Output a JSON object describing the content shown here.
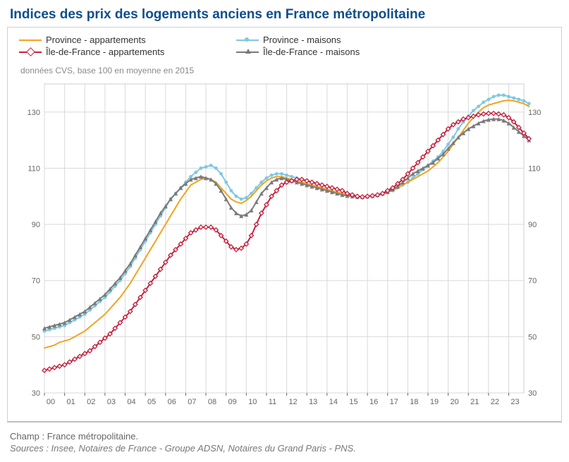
{
  "title": "Indices des prix des logements anciens en France métropolitaine",
  "note": "données CVS, base 100 en moyenne en 2015",
  "footer_field": "Champ : France métropolitaine.",
  "footer_sources": "Sources : Insee, Notaires de France - Groupe ADSN, Notaires du Grand Paris - PNS.",
  "legend": {
    "prov_appart": "Province - appartements",
    "idf_appart": "Île-de-France - appartements",
    "prov_maison": "Province - maisons",
    "idf_maison": "Île-de-France - maisons"
  },
  "chart": {
    "type": "line",
    "background_color": "#ffffff",
    "plot_border_color": "#cfcfcf",
    "grid_color": "#d9d9d9",
    "axis_text_color": "#666666",
    "axis_fontsize": 11,
    "ylim": [
      30,
      140
    ],
    "yticks": [
      30,
      50,
      70,
      90,
      110,
      130
    ],
    "x_labels": [
      "00",
      "01",
      "02",
      "03",
      "04",
      "05",
      "06",
      "07",
      "08",
      "09",
      "10",
      "11",
      "12",
      "13",
      "14",
      "15",
      "16",
      "17",
      "18",
      "19",
      "20",
      "21",
      "22",
      "23"
    ],
    "x_step": 4,
    "x_points": 97,
    "series": {
      "prov_appart": {
        "color": "#f2a320",
        "marker": "none",
        "line_width": 2,
        "values": [
          46,
          46.5,
          47,
          48,
          48.5,
          49,
          50,
          51,
          52,
          53.5,
          55,
          56.5,
          58,
          60,
          62,
          64,
          66.5,
          69,
          72,
          75,
          78,
          81,
          84,
          87,
          90,
          93,
          96,
          99,
          101.5,
          104,
          105,
          106,
          106.5,
          106,
          105,
          103,
          101,
          99,
          98,
          97.5,
          98.5,
          100,
          102,
          104,
          105.5,
          106.5,
          107,
          107,
          106.5,
          106,
          105.5,
          105,
          104.5,
          104,
          103.5,
          103,
          102.5,
          102,
          101.5,
          101,
          100.5,
          100,
          99.8,
          99.8,
          100,
          100.2,
          100.5,
          101,
          101.5,
          102,
          103,
          104,
          105,
          106,
          107,
          108,
          109,
          110.5,
          112,
          114,
          116,
          118.5,
          121,
          123.5,
          126,
          128,
          130,
          131.5,
          132.5,
          133,
          133.5,
          134,
          134.2,
          134,
          133.5,
          133,
          132
        ]
      },
      "prov_maison": {
        "color": "#7ec8e3",
        "marker": "dot",
        "line_width": 2,
        "values": [
          52,
          52.5,
          53,
          53.5,
          54,
          55,
          56,
          57,
          58,
          59.5,
          61,
          62.5,
          64,
          66,
          68,
          70,
          72.5,
          75,
          78,
          81,
          84,
          87,
          90,
          93,
          96,
          99,
          101,
          103,
          105,
          107,
          108.5,
          110,
          110.5,
          111,
          110,
          108,
          105,
          102,
          100,
          99,
          99.5,
          101,
          103,
          105,
          106.5,
          107.5,
          108,
          108,
          107.5,
          107,
          106.5,
          106,
          105.5,
          105,
          104.5,
          104,
          103.5,
          103,
          102.5,
          102,
          101,
          100.5,
          100,
          99.8,
          100,
          100.2,
          100.5,
          101,
          101.5,
          102,
          103,
          104,
          105,
          106.5,
          108,
          109.5,
          111,
          112.5,
          114,
          116,
          118.5,
          121,
          124,
          126.5,
          128.5,
          130.5,
          132,
          133.5,
          134.5,
          135.5,
          136,
          136,
          135.5,
          135,
          134.5,
          134,
          133
        ]
      },
      "idf_appart": {
        "color": "#c71f3d",
        "marker": "diamond",
        "line_width": 2,
        "values": [
          38,
          38.5,
          39,
          39.5,
          40,
          41,
          42,
          43,
          44,
          45,
          46.5,
          48,
          49.5,
          51,
          53,
          55,
          57,
          59,
          61.5,
          64,
          66.5,
          69,
          71.5,
          74,
          76.5,
          79,
          81,
          83,
          85,
          87,
          88,
          89,
          89,
          89,
          88,
          86,
          84,
          82,
          81,
          81.5,
          83,
          86,
          90,
          94,
          97,
          100,
          102,
          104,
          105,
          105.5,
          106,
          106,
          105.5,
          105,
          104.5,
          104,
          103.5,
          103,
          102.5,
          102,
          101,
          100.5,
          100,
          99.8,
          100,
          100.2,
          100.5,
          101,
          102,
          103,
          104.5,
          106,
          108,
          110,
          112,
          114,
          116,
          118,
          120,
          122,
          124,
          125.5,
          126.5,
          127.5,
          128,
          128.5,
          129,
          129.3,
          129.5,
          129.5,
          129.3,
          129,
          128,
          126.5,
          124.5,
          122.5,
          120.5
        ]
      },
      "idf_maison": {
        "color": "#7a7a7a",
        "marker": "triangle",
        "line_width": 2,
        "values": [
          53,
          53.5,
          54,
          54.5,
          55,
          56,
          57,
          58,
          59,
          60.5,
          62,
          63.5,
          65,
          67,
          69,
          71,
          73.5,
          76,
          79,
          82,
          85,
          88,
          91,
          94,
          96.5,
          99,
          101,
          103,
          104.5,
          106,
          106.5,
          107,
          106.5,
          106,
          104.5,
          102,
          99,
          96,
          94,
          93,
          93.5,
          95,
          98,
          101,
          103,
          105,
          106,
          106.5,
          106,
          105.5,
          105,
          104.5,
          104,
          103.5,
          103,
          102.5,
          102,
          101.5,
          101,
          100.5,
          100.2,
          100,
          99.8,
          99.8,
          100,
          100.2,
          100.5,
          101,
          101.5,
          102.5,
          103.5,
          105,
          106.5,
          108,
          109,
          110,
          111,
          112,
          113.5,
          115,
          117,
          119,
          121,
          122.5,
          124,
          125,
          126,
          126.8,
          127.3,
          127.5,
          127.5,
          127,
          126,
          124.5,
          123,
          121.5,
          120
        ]
      }
    }
  }
}
